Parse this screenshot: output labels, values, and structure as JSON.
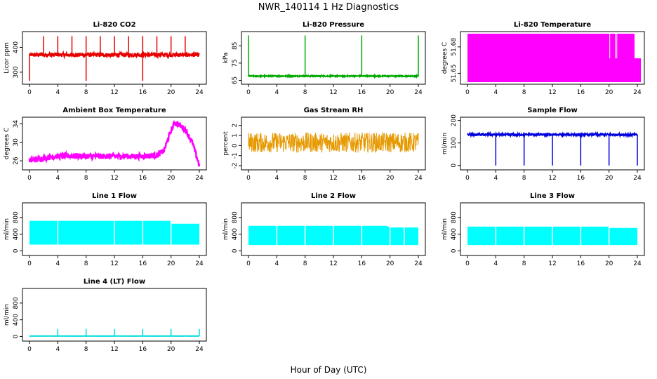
{
  "figure": {
    "title": "NWR_140114  1 Hz Diagnostics",
    "xlabel": "Hour of Day (UTC)"
  },
  "chart_data": [
    {
      "type": "line",
      "title": "Li-820 CO2",
      "ylabel": "Licor ppm",
      "color": "#e60000",
      "x_ticks": [
        0,
        4,
        8,
        12,
        16,
        20,
        24
      ],
      "y_ticks": [
        300,
        400
      ],
      "xlim": [
        0,
        24
      ],
      "ylim": [
        260,
        455
      ],
      "baseline": 370,
      "noise": 8,
      "pattern": "spikes",
      "spikes_up": [
        2,
        4,
        6,
        8,
        10,
        12,
        14,
        16,
        18,
        20,
        22
      ],
      "spikes_down": [
        0,
        8,
        16
      ],
      "spike_top": 445,
      "spike_bottom": 265
    },
    {
      "type": "line",
      "title": "Li-820 Pressure",
      "ylabel": "kPa",
      "color": "#00aa00",
      "x_ticks": [
        0,
        4,
        8,
        12,
        16,
        20,
        24
      ],
      "y_ticks": [
        65,
        75,
        85
      ],
      "xlim": [
        0,
        24
      ],
      "ylim": [
        64,
        92
      ],
      "baseline": 67.5,
      "noise": 0.3,
      "pattern": "spikes",
      "spikes_up": [
        0,
        8,
        16,
        24
      ],
      "spike_top": 91,
      "spikes_down": [],
      "spike_bottom": 64
    },
    {
      "type": "area",
      "title": "Li-820 Temperature",
      "ylabel": "degrees C",
      "color": "#ff00ff",
      "x_ticks": [
        0,
        4,
        8,
        12,
        16,
        20,
        24
      ],
      "y_ticks": [
        51.65,
        51.68
      ],
      "xlim": [
        0,
        24
      ],
      "ylim": [
        51.64,
        51.695
      ],
      "fill_ranges": [
        [
          0,
          23.6,
          51.64,
          51.695
        ],
        [
          23.6,
          24.5,
          51.64,
          51.667
        ]
      ]
    },
    {
      "type": "line",
      "title": "Ambient Box Temperature",
      "ylabel": "degrees C",
      "color": "#ff00ff",
      "x_ticks": [
        0,
        4,
        8,
        12,
        16,
        20,
        24
      ],
      "y_ticks": [
        26,
        30,
        34
      ],
      "xlim": [
        0,
        24
      ],
      "ylim": [
        24.5,
        35
      ],
      "x": [
        0,
        2,
        4,
        6,
        8,
        10,
        12,
        14,
        16,
        18,
        19,
        20,
        20.5,
        21,
        22,
        23,
        24
      ],
      "y": [
        26.0,
        26.6,
        27.0,
        27.1,
        27.0,
        27.0,
        27.0,
        27.0,
        27.0,
        27.2,
        28.2,
        32.5,
        34.2,
        34.0,
        32.8,
        30.0,
        25.0
      ],
      "noise": 0.6,
      "pattern": "band"
    },
    {
      "type": "line",
      "title": "Gas Stream RH",
      "ylabel": "percent",
      "color": "#e69900",
      "x_ticks": [
        0,
        4,
        8,
        12,
        16,
        20,
        24
      ],
      "y_ticks": [
        -2,
        -1,
        0,
        1,
        2
      ],
      "xlim": [
        0,
        24
      ],
      "ylim": [
        -2.2,
        2.6
      ],
      "baseline": 0.3,
      "noise": 1.0,
      "pattern": "noise"
    },
    {
      "type": "line",
      "title": "Sample Flow",
      "ylabel": "ml/min",
      "color": "#0000dd",
      "x_ticks": [
        0,
        4,
        8,
        12,
        16,
        20,
        24
      ],
      "y_ticks": [
        0,
        100,
        200
      ],
      "xlim": [
        0,
        24
      ],
      "ylim": [
        -10,
        205
      ],
      "baseline": 137,
      "noise": 4,
      "pattern": "spikes",
      "spikes_up": [],
      "spike_top": 205,
      "spikes_down": [
        4,
        8,
        12,
        16,
        20,
        24
      ],
      "spike_bottom": 0
    },
    {
      "type": "area",
      "title": "Line 1 Flow",
      "ylabel": "ml/min",
      "color": "#00ffff",
      "x_ticks": [
        0,
        4,
        8,
        12,
        16,
        20,
        24
      ],
      "y_ticks": [
        0,
        400,
        800
      ],
      "xlim": [
        0,
        24
      ],
      "ylim": [
        -60,
        1100
      ],
      "band_low": 150,
      "band_high": [
        [
          0,
          720
        ],
        [
          20,
          720
        ],
        [
          20,
          650
        ],
        [
          24,
          650
        ]
      ],
      "gaps": [
        4,
        12,
        16,
        20
      ]
    },
    {
      "type": "area",
      "title": "Line 2 Flow",
      "ylabel": "ml/min",
      "color": "#00ffff",
      "x_ticks": [
        0,
        4,
        8,
        12,
        16,
        20,
        24
      ],
      "y_ticks": [
        0,
        400,
        800
      ],
      "xlim": [
        0,
        24
      ],
      "ylim": [
        -60,
        1100
      ],
      "band_low": 140,
      "band_high": [
        [
          0,
          600
        ],
        [
          19.5,
          600
        ],
        [
          20,
          560
        ],
        [
          24,
          560
        ]
      ],
      "gaps": [
        4,
        8,
        12,
        16,
        20,
        22
      ]
    },
    {
      "type": "area",
      "title": "Line 3 Flow",
      "ylabel": "ml/min",
      "color": "#00ffff",
      "x_ticks": [
        0,
        4,
        8,
        12,
        16,
        20,
        24
      ],
      "y_ticks": [
        0,
        400,
        800
      ],
      "xlim": [
        0,
        24
      ],
      "ylim": [
        -60,
        1100
      ],
      "band_low": 140,
      "band_high": [
        [
          0,
          580
        ],
        [
          20,
          580
        ],
        [
          20,
          550
        ],
        [
          24,
          550
        ]
      ],
      "gaps": [
        4,
        8,
        12,
        16,
        20
      ]
    },
    {
      "type": "line",
      "title": "Line 4 (LT) Flow",
      "ylabel": "ml/min",
      "color": "#00dddd",
      "x_ticks": [
        0,
        4,
        8,
        12,
        16,
        20,
        24
      ],
      "y_ticks": [
        0,
        400,
        800
      ],
      "xlim": [
        0,
        24
      ],
      "ylim": [
        -60,
        1100
      ],
      "baseline": 10,
      "noise": 1,
      "pattern": "spikes",
      "spikes_up": [
        4,
        8,
        12,
        16,
        20,
        24
      ],
      "spike_top": 180,
      "spikes_down": [],
      "spike_bottom": 0
    }
  ]
}
